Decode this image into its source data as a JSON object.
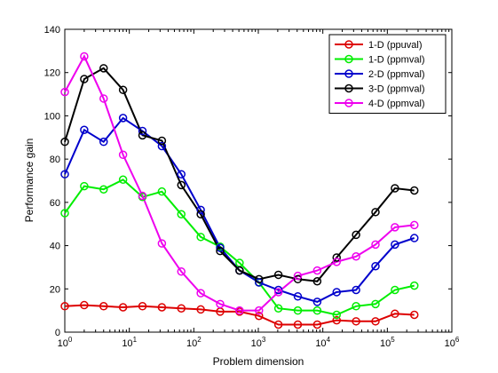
{
  "chart_data": {
    "type": "line",
    "xlabel": "Problem dimension",
    "ylabel": "Performance gain",
    "xscale": "log",
    "xlim": [
      1,
      1000000
    ],
    "ylim": [
      0,
      140
    ],
    "grid": false,
    "legend_position": "top-right",
    "x_ticks": [
      {
        "value": 1,
        "base": "10",
        "exp": "0"
      },
      {
        "value": 10,
        "base": "10",
        "exp": "1"
      },
      {
        "value": 100,
        "base": "10",
        "exp": "2"
      },
      {
        "value": 1000,
        "base": "10",
        "exp": "3"
      },
      {
        "value": 10000,
        "base": "10",
        "exp": "4"
      },
      {
        "value": 100000,
        "base": "10",
        "exp": "5"
      },
      {
        "value": 1000000,
        "base": "10",
        "exp": "6"
      }
    ],
    "y_ticks": [
      0,
      20,
      40,
      60,
      80,
      100,
      120,
      140
    ],
    "x": [
      1,
      2,
      4,
      8,
      16,
      32,
      64,
      128,
      256,
      512,
      1024,
      2048,
      4096,
      8192,
      16384,
      32768,
      65536,
      131072,
      262144
    ],
    "series": [
      {
        "name": "1-D (ppuval)",
        "color": "#dd0000",
        "values": [
          12,
          12.5,
          12,
          11.5,
          12,
          11.5,
          11,
          10.5,
          9.5,
          9.5,
          7.5,
          3.5,
          3.5,
          3.5,
          5.5,
          5,
          5,
          8.5,
          8
        ]
      },
      {
        "name": "1-D (ppmval)",
        "color": "#00ee00",
        "values": [
          55,
          67.5,
          66,
          70.5,
          62.5,
          65,
          54.5,
          44,
          39.5,
          32,
          23,
          11,
          10,
          10,
          8,
          12,
          13,
          19.5,
          21.5
        ]
      },
      {
        "name": "2-D (ppmval)",
        "color": "#0000cc",
        "values": [
          73,
          93.5,
          88,
          99,
          93,
          86,
          73,
          56.5,
          39,
          28.5,
          23,
          19.5,
          16.5,
          14,
          18.5,
          19.5,
          30.5,
          40.5,
          43.5
        ]
      },
      {
        "name": "3-D (ppmval)",
        "color": "#000000",
        "values": [
          88,
          117,
          122,
          112,
          91,
          88.5,
          68,
          54.5,
          37.5,
          28.5,
          24.5,
          26.5,
          24.5,
          23.5,
          34.5,
          45,
          55.5,
          66.5,
          65.5
        ]
      },
      {
        "name": "4-D (ppmval)",
        "color": "#ee00ee",
        "values": [
          111,
          127.5,
          108,
          82,
          63,
          41,
          28,
          18,
          13,
          10,
          10,
          18.5,
          26,
          28.5,
          32.5,
          35,
          40.5,
          48.5,
          49.5
        ]
      }
    ]
  }
}
